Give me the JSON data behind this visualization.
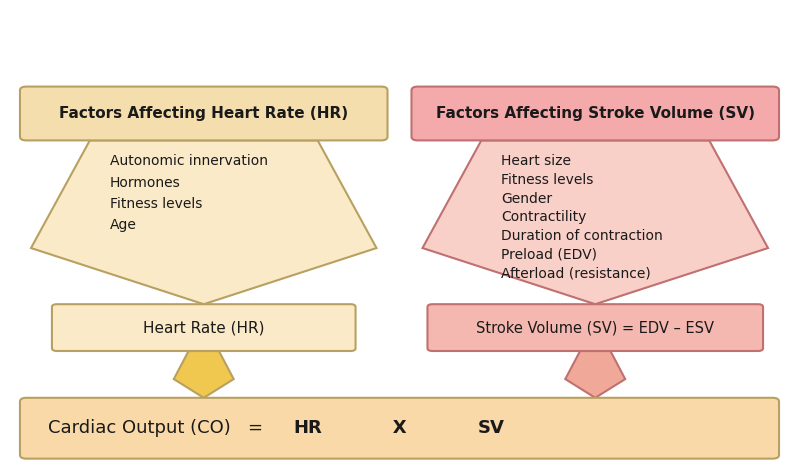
{
  "background_color": "#ffffff",
  "left_header_bg": "#f5dead",
  "left_header_border": "#b8a060",
  "left_arrow_color": "#faeac8",
  "left_arrow_border": "#b8a060",
  "left_box_bg": "#faeac8",
  "left_box_border": "#b8a060",
  "left_small_arrow_color": "#f0c850",
  "left_small_arrow_border": "#b8a060",
  "right_header_bg": "#f4aaaa",
  "right_header_border": "#c07070",
  "right_arrow_color": "#f9d0c8",
  "right_arrow_border": "#c07070",
  "right_box_bg": "#f4b8b0",
  "right_box_border": "#c07070",
  "right_small_arrow_color": "#f0a898",
  "right_small_arrow_border": "#c07070",
  "bottom_box_bg": "#fad9a8",
  "bottom_box_border": "#b8a060",
  "left_header_text": "Factors Affecting Heart Rate (HR)",
  "right_header_text": "Factors Affecting Stroke Volume (SV)",
  "left_factors": [
    "Autonomic innervation",
    "Hormones",
    "Fitness levels",
    "Age"
  ],
  "right_factors": [
    "Heart size",
    "Fitness levels",
    "Gender",
    "Contractility",
    "Duration of contraction",
    "Preload (EDV)",
    "Afterload (resistance)"
  ],
  "left_box_text": "Heart Rate (HR)",
  "right_box_text": "Stroke Volume (SV) = EDV – ESV",
  "bottom_text_left": "Cardiac Output (CO)   =   ",
  "bottom_text_hr": "HR",
  "bottom_text_x": "   X   ",
  "bottom_text_sv": "SV",
  "text_color": "#1a1a1a",
  "header_text_color": "#1a1a1a",
  "figw": 7.99,
  "figh": 4.68,
  "dpi": 100
}
